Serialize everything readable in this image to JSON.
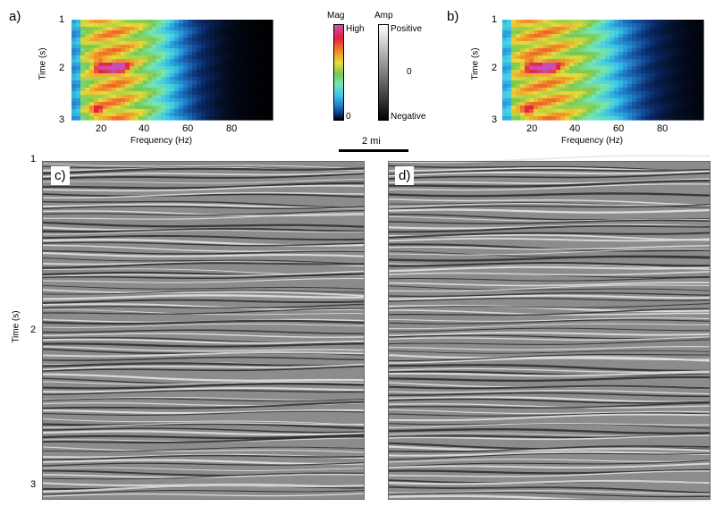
{
  "panels": {
    "a": {
      "label": "a)",
      "ylabel": "Time (s)",
      "xlabel": "Frequency (Hz)",
      "yticks": [
        "1",
        "2",
        "3"
      ],
      "xticks": [
        "20",
        "40",
        "60",
        "80"
      ]
    },
    "b": {
      "label": "b)",
      "ylabel": "Time (s)",
      "xlabel": "Frequency (Hz)",
      "yticks": [
        "1",
        "2",
        "3"
      ],
      "xticks": [
        "20",
        "40",
        "60",
        "80"
      ]
    },
    "c": {
      "label": "c)",
      "ylabel": "Time (s)",
      "yticks": [
        "1",
        "2",
        "3"
      ]
    },
    "d": {
      "label": "d)"
    }
  },
  "colorbars": {
    "mag": {
      "title": "Mag",
      "high": "High",
      "low": "0"
    },
    "amp": {
      "title": "Amp",
      "high": "Positive",
      "mid": "0",
      "low": "Negative"
    }
  },
  "scale_bar": {
    "label": "2 mi"
  },
  "colors": {
    "spectrum": [
      "#000000",
      "#0a2a6a",
      "#1e78c8",
      "#3cc8e6",
      "#78e6b4",
      "#78c850",
      "#e6dc3c",
      "#f08c28",
      "#e61e3c",
      "#c850b4"
    ],
    "seismic_light": "#e6e6e6",
    "seismic_dark": "#2a2a2a"
  }
}
